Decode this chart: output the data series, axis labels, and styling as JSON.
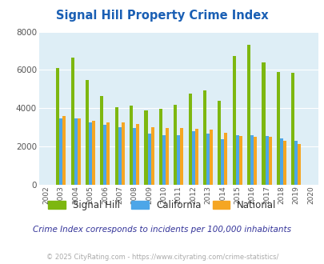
{
  "title": "Signal Hill Property Crime Index",
  "years": [
    2002,
    2003,
    2004,
    2005,
    2006,
    2007,
    2008,
    2009,
    2010,
    2011,
    2012,
    2013,
    2014,
    2015,
    2016,
    2017,
    2018,
    2019,
    2020
  ],
  "signal_hill": [
    null,
    6100,
    6650,
    5480,
    4650,
    4050,
    4150,
    3900,
    3950,
    4200,
    4750,
    4950,
    4380,
    6750,
    7300,
    6400,
    5900,
    5850,
    null
  ],
  "california": [
    null,
    3450,
    3450,
    3280,
    3150,
    3020,
    2950,
    2680,
    2580,
    2580,
    2780,
    2660,
    2390,
    2580,
    2580,
    2530,
    2420,
    2310,
    null
  ],
  "national": [
    null,
    3580,
    3480,
    3350,
    3280,
    3240,
    3170,
    3030,
    2980,
    2960,
    2930,
    2870,
    2700,
    2570,
    2510,
    2500,
    2290,
    2120,
    null
  ],
  "signal_hill_color": "#7db710",
  "california_color": "#4da6e8",
  "national_color": "#f5a623",
  "bg_color": "#deeef6",
  "ylim": [
    0,
    8000
  ],
  "yticks": [
    0,
    2000,
    4000,
    6000,
    8000
  ],
  "subtitle": "Crime Index corresponds to incidents per 100,000 inhabitants",
  "footer": "© 2025 CityRating.com - https://www.cityrating.com/crime-statistics/",
  "title_color": "#1a5fb4",
  "subtitle_color": "#333399",
  "footer_color": "#aaaaaa",
  "grid_color": "#ffffff",
  "legend_labels": [
    "Signal Hill",
    "California",
    "National"
  ]
}
